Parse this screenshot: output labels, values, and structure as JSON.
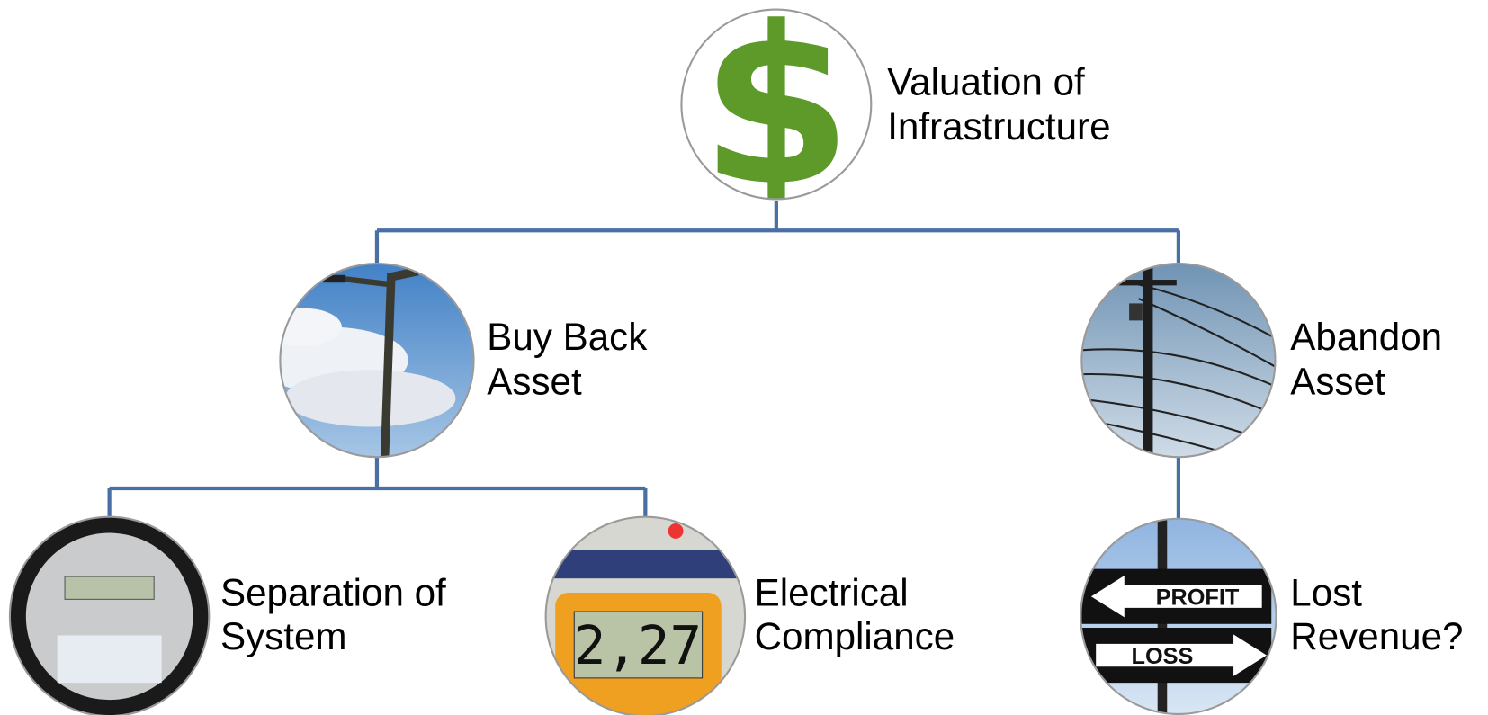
{
  "nodes": [
    {
      "label": [
        "Valuation of",
        "Infrastructure"
      ]
    },
    {
      "label": [
        "Buy Back",
        "Asset"
      ]
    },
    {
      "label": [
        "Abandon",
        "Asset"
      ]
    },
    {
      "label": [
        "Separation of",
        "System"
      ]
    },
    {
      "label": [
        "Electrical",
        "Compliance"
      ]
    },
    {
      "label": [
        "Lost",
        "Revenue?"
      ]
    }
  ],
  "signs": [
    "PROFIT",
    "LOSS"
  ],
  "meter_reading": "2,27"
}
